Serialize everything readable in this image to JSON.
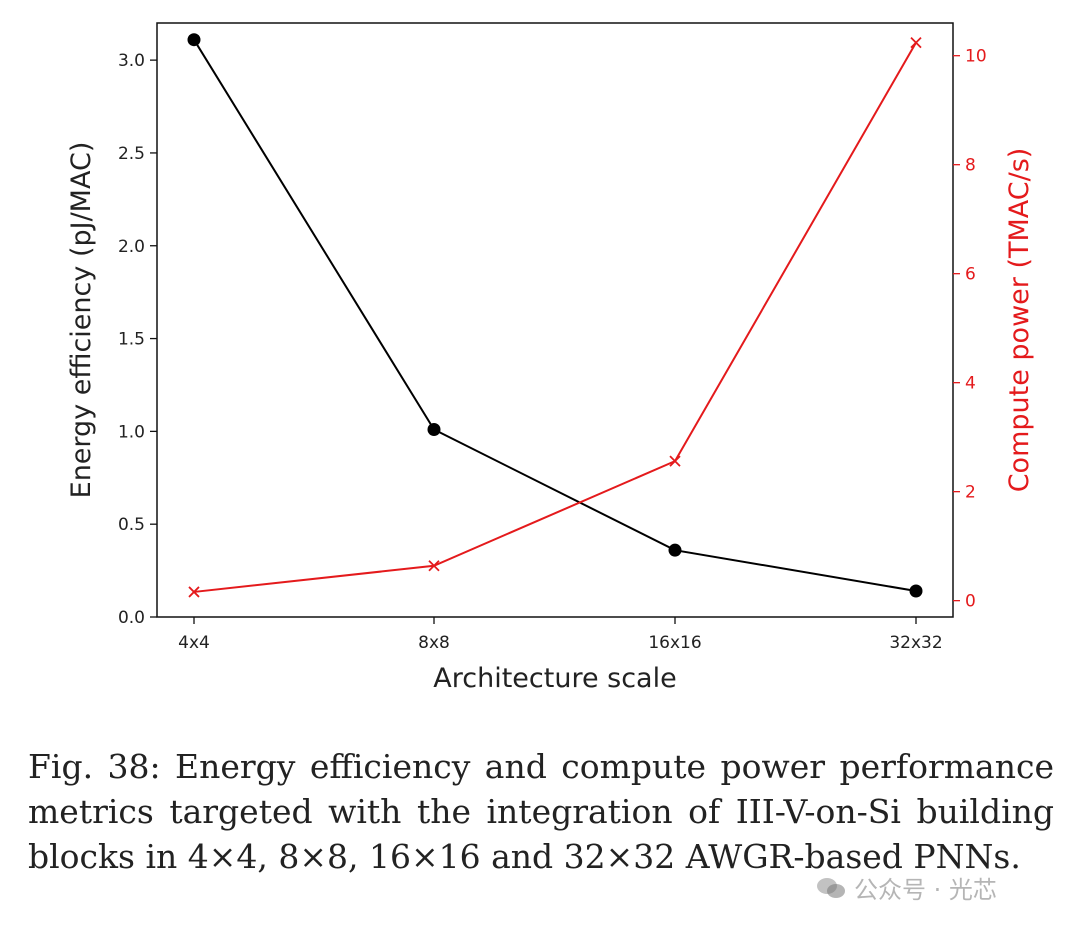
{
  "chart_data": {
    "type": "line",
    "categories": [
      "4x4",
      "8x8",
      "16x16",
      "32x32"
    ],
    "xlabel": "Architecture scale",
    "ylabel_left": "Energy efficiency (pJ/MAC)",
    "ylabel_right": "Compute power (TMAC/s)",
    "ylim_left": [
      0,
      3.2
    ],
    "ylim_right": [
      -0.3,
      10.6
    ],
    "yticks_left": [
      "0.0",
      "0.5",
      "1.0",
      "1.5",
      "2.0",
      "2.5",
      "3.0"
    ],
    "yticks_right": [
      "0",
      "2",
      "4",
      "6",
      "8",
      "10"
    ],
    "grid": false,
    "series": [
      {
        "name": "Energy efficiency (pJ/MAC)",
        "axis": "left",
        "marker": "circle",
        "color": "#000000",
        "values": [
          3.11,
          1.01,
          0.36,
          0.14
        ]
      },
      {
        "name": "Compute power (TMAC/s)",
        "axis": "right",
        "marker": "x",
        "color": "#e41a1c",
        "values": [
          0.16,
          0.64,
          2.56,
          10.24
        ]
      }
    ]
  },
  "caption": "Fig. 38: Energy efficiency and compute power performance metrics targeted with the integration of III-V-on-Si building blocks in 4×4, 8×8, 16×16 and 32×32 AWGR-based PNNs.",
  "watermark": {
    "text": "公众号 · 光芯",
    "icon": "wechat-icon"
  }
}
